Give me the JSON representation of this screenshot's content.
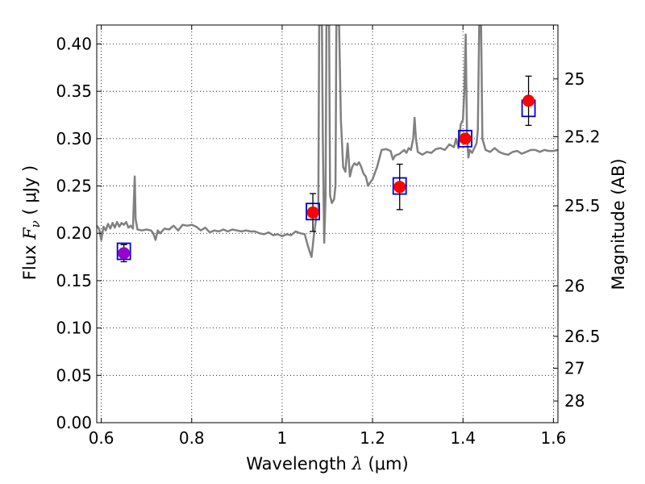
{
  "chart_data": {
    "type": "scatter",
    "xlabel": {
      "prefix": "Wavelength  ",
      "symbol": "λ",
      "unit": " (μm)"
    },
    "ylabel": {
      "prefix": "Flux  ",
      "symbol": "F",
      "subscript": "ν",
      "unit": "  ( μJy )"
    },
    "ylabel_right": "Magnitude (AB)",
    "xlim": [
      0.59,
      1.61
    ],
    "ylim": [
      0.0,
      0.42
    ],
    "grid": true,
    "x_ticks": [
      {
        "value": 0.6,
        "label": "0.6"
      },
      {
        "value": 0.8,
        "label": "0.8"
      },
      {
        "value": 1.0,
        "label": "1"
      },
      {
        "value": 1.2,
        "label": "1.2"
      },
      {
        "value": 1.4,
        "label": "1.4"
      },
      {
        "value": 1.6,
        "label": "1.6"
      }
    ],
    "y_ticks": [
      {
        "value": 0.0,
        "label": "0.00"
      },
      {
        "value": 0.05,
        "label": "0.05"
      },
      {
        "value": 0.1,
        "label": "0.10"
      },
      {
        "value": 0.15,
        "label": "0.15"
      },
      {
        "value": 0.2,
        "label": "0.20"
      },
      {
        "value": 0.25,
        "label": "0.25"
      },
      {
        "value": 0.3,
        "label": "0.30"
      },
      {
        "value": 0.35,
        "label": "0.35"
      },
      {
        "value": 0.4,
        "label": "0.40"
      }
    ],
    "mag_ticks": [
      {
        "value": 25,
        "label": "25"
      },
      {
        "value": 25.2,
        "label": "25.2"
      },
      {
        "value": 25.5,
        "label": "25.5"
      },
      {
        "value": 26,
        "label": "26"
      },
      {
        "value": 26.5,
        "label": "26.5"
      },
      {
        "value": 27,
        "label": "27"
      },
      {
        "value": 28,
        "label": "28"
      }
    ],
    "series": [
      {
        "kind": "model_spectrum",
        "color": "#808080",
        "points": [
          [
            0.59,
            0.208
          ],
          [
            0.595,
            0.205
          ],
          [
            0.6,
            0.193
          ],
          [
            0.605,
            0.207
          ],
          [
            0.61,
            0.203
          ],
          [
            0.615,
            0.21
          ],
          [
            0.62,
            0.205
          ],
          [
            0.625,
            0.211
          ],
          [
            0.63,
            0.206
          ],
          [
            0.635,
            0.212
          ],
          [
            0.64,
            0.207
          ],
          [
            0.645,
            0.211
          ],
          [
            0.65,
            0.209
          ],
          [
            0.655,
            0.212
          ],
          [
            0.66,
            0.206
          ],
          [
            0.665,
            0.208
          ],
          [
            0.67,
            0.205
          ],
          [
            0.672,
            0.233
          ],
          [
            0.674,
            0.26
          ],
          [
            0.676,
            0.215
          ],
          [
            0.68,
            0.204
          ],
          [
            0.69,
            0.203
          ],
          [
            0.7,
            0.204
          ],
          [
            0.71,
            0.203
          ],
          [
            0.715,
            0.2
          ],
          [
            0.72,
            0.193
          ],
          [
            0.725,
            0.203
          ],
          [
            0.73,
            0.2
          ],
          [
            0.74,
            0.205
          ],
          [
            0.75,
            0.204
          ],
          [
            0.76,
            0.208
          ],
          [
            0.77,
            0.203
          ],
          [
            0.78,
            0.209
          ],
          [
            0.79,
            0.208
          ],
          [
            0.8,
            0.209
          ],
          [
            0.81,
            0.207
          ],
          [
            0.82,
            0.203
          ],
          [
            0.83,
            0.206
          ],
          [
            0.84,
            0.201
          ],
          [
            0.85,
            0.203
          ],
          [
            0.86,
            0.202
          ],
          [
            0.87,
            0.204
          ],
          [
            0.88,
            0.202
          ],
          [
            0.89,
            0.204
          ],
          [
            0.9,
            0.203
          ],
          [
            0.91,
            0.202
          ],
          [
            0.92,
            0.203
          ],
          [
            0.93,
            0.202
          ],
          [
            0.94,
            0.202
          ],
          [
            0.95,
            0.2
          ],
          [
            0.96,
            0.199
          ],
          [
            0.97,
            0.201
          ],
          [
            0.98,
            0.198
          ],
          [
            0.99,
            0.199
          ],
          [
            1.0,
            0.197
          ],
          [
            1.01,
            0.199
          ],
          [
            1.02,
            0.198
          ],
          [
            1.03,
            0.202
          ],
          [
            1.04,
            0.2
          ],
          [
            1.05,
            0.199
          ],
          [
            1.055,
            0.19
          ],
          [
            1.06,
            0.182
          ],
          [
            1.065,
            0.175
          ],
          [
            1.07,
            0.197
          ],
          [
            1.075,
            0.215
          ],
          [
            1.08,
            0.226
          ],
          [
            1.082,
            0.42
          ],
          [
            1.088,
            0.42
          ],
          [
            1.09,
            0.3
          ],
          [
            1.093,
            0.19
          ],
          [
            1.096,
            0.24
          ],
          [
            1.098,
            0.42
          ],
          [
            1.104,
            0.42
          ],
          [
            1.106,
            0.24
          ],
          [
            1.11,
            0.232
          ],
          [
            1.115,
            0.236
          ],
          [
            1.118,
            0.25
          ],
          [
            1.12,
            0.42
          ],
          [
            1.126,
            0.42
          ],
          [
            1.13,
            0.32
          ],
          [
            1.135,
            0.27
          ],
          [
            1.14,
            0.265
          ],
          [
            1.145,
            0.295
          ],
          [
            1.15,
            0.26
          ],
          [
            1.155,
            0.27
          ],
          [
            1.16,
            0.274
          ],
          [
            1.165,
            0.272
          ],
          [
            1.17,
            0.275
          ],
          [
            1.175,
            0.27
          ],
          [
            1.18,
            0.263
          ],
          [
            1.185,
            0.26
          ],
          [
            1.19,
            0.25
          ],
          [
            1.195,
            0.254
          ],
          [
            1.2,
            0.257
          ],
          [
            1.21,
            0.27
          ],
          [
            1.22,
            0.288
          ],
          [
            1.23,
            0.289
          ],
          [
            1.24,
            0.287
          ],
          [
            1.245,
            0.278
          ],
          [
            1.25,
            0.282
          ],
          [
            1.26,
            0.284
          ],
          [
            1.27,
            0.288
          ],
          [
            1.275,
            0.285
          ],
          [
            1.28,
            0.29
          ],
          [
            1.285,
            0.288
          ],
          [
            1.29,
            0.3
          ],
          [
            1.293,
            0.322
          ],
          [
            1.296,
            0.3
          ],
          [
            1.3,
            0.286
          ],
          [
            1.31,
            0.283
          ],
          [
            1.32,
            0.286
          ],
          [
            1.33,
            0.285
          ],
          [
            1.34,
            0.289
          ],
          [
            1.35,
            0.29
          ],
          [
            1.36,
            0.288
          ],
          [
            1.37,
            0.294
          ],
          [
            1.38,
            0.291
          ],
          [
            1.385,
            0.3
          ],
          [
            1.39,
            0.29
          ],
          [
            1.395,
            0.315
          ],
          [
            1.4,
            0.32
          ],
          [
            1.403,
            0.35
          ],
          [
            1.406,
            0.41
          ],
          [
            1.409,
            0.3
          ],
          [
            1.412,
            0.28
          ],
          [
            1.415,
            0.288
          ],
          [
            1.42,
            0.285
          ],
          [
            1.425,
            0.29
          ],
          [
            1.43,
            0.295
          ],
          [
            1.433,
            0.31
          ],
          [
            1.436,
            0.42
          ],
          [
            1.44,
            0.42
          ],
          [
            1.443,
            0.3
          ],
          [
            1.45,
            0.288
          ],
          [
            1.46,
            0.286
          ],
          [
            1.47,
            0.29
          ],
          [
            1.48,
            0.286
          ],
          [
            1.49,
            0.284
          ],
          [
            1.5,
            0.283
          ],
          [
            1.51,
            0.286
          ],
          [
            1.52,
            0.287
          ],
          [
            1.53,
            0.284
          ],
          [
            1.54,
            0.286
          ],
          [
            1.55,
            0.288
          ],
          [
            1.56,
            0.288
          ],
          [
            1.57,
            0.286
          ],
          [
            1.58,
            0.288
          ],
          [
            1.59,
            0.287
          ],
          [
            1.6,
            0.287
          ],
          [
            1.61,
            0.288
          ]
        ]
      },
      {
        "kind": "model_band_flux",
        "marker": "open-square",
        "color": "#0000cc",
        "points": [
          [
            0.65,
            0.181
          ],
          [
            1.068,
            0.223
          ],
          [
            1.26,
            0.25
          ],
          [
            1.405,
            0.3
          ],
          [
            1.545,
            0.332
          ]
        ]
      },
      {
        "kind": "observed",
        "marker": "filled-circle",
        "color": "#ff0000",
        "points": [
          {
            "x": 0.65,
            "y": 0.179,
            "err": 0.009,
            "color": "#9900cc"
          },
          {
            "x": 1.068,
            "y": 0.222,
            "err": 0.02,
            "color": "#ff0000"
          },
          {
            "x": 1.26,
            "y": 0.249,
            "err": 0.024,
            "color": "#ff0000"
          },
          {
            "x": 1.405,
            "y": 0.3,
            "err": 0.0,
            "color": "#ff0000"
          },
          {
            "x": 1.545,
            "y": 0.34,
            "err": 0.026,
            "color": "#ff0000"
          }
        ]
      }
    ]
  }
}
